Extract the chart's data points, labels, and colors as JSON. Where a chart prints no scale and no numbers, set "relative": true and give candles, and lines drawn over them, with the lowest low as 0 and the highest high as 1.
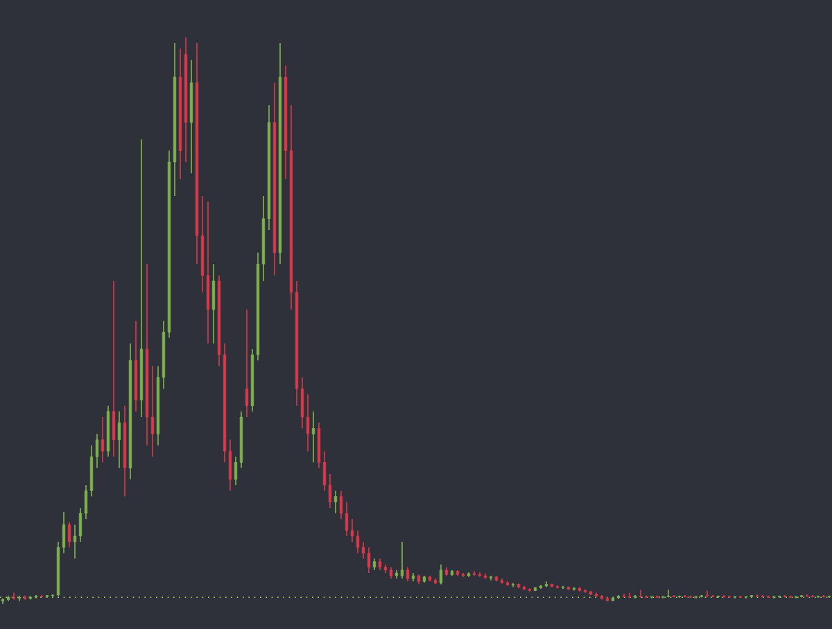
{
  "chart_data": {
    "type": "candlestick",
    "relative": true,
    "categories": [
      null,
      null,
      null,
      null,
      null,
      null,
      null,
      null,
      null,
      null,
      null,
      null,
      null,
      null,
      null,
      null,
      null,
      null,
      null,
      null,
      null,
      null,
      null,
      null,
      null,
      null,
      null,
      null,
      null,
      null,
      null,
      null,
      null,
      null,
      null,
      null,
      null,
      null,
      null,
      null,
      null,
      null,
      null,
      null,
      null,
      null,
      null,
      null,
      null,
      null,
      null,
      null,
      null,
      null,
      null,
      null,
      null,
      null,
      null,
      null,
      null,
      null,
      null,
      null,
      null,
      null,
      null,
      null,
      null,
      null,
      null,
      null,
      null,
      null,
      null,
      null,
      null,
      null,
      null,
      null,
      null,
      null,
      null,
      null,
      null,
      null,
      null,
      null,
      null,
      null,
      null,
      null,
      null,
      null,
      null,
      null,
      null,
      null,
      null,
      null,
      null,
      null,
      null,
      null,
      null,
      null,
      null,
      null,
      null,
      null,
      null,
      null,
      null,
      null,
      null,
      null,
      null,
      null,
      null,
      null,
      null,
      null,
      null,
      null,
      null,
      null,
      null,
      null,
      null,
      null,
      null,
      null,
      null,
      null,
      null,
      null,
      null,
      null,
      null,
      null,
      null,
      null,
      null,
      null,
      null,
      null,
      null,
      null,
      null,
      null
    ],
    "colors": [
      "#7fb24f",
      "#7fb24f",
      "#d9394a",
      "#7fb24f",
      "#d9394a",
      "#7fb24f",
      "#7fb24f",
      "#d9394a",
      "#7fb24f",
      "#7fb24f",
      "#7fb24f",
      "#7fb24f",
      "#d9394a",
      "#7fb24f",
      "#7fb24f",
      "#7fb24f",
      "#7fb24f",
      "#7fb24f",
      "#d9394a",
      "#7fb24f",
      "#d9394a",
      "#7fb24f",
      "#d9394a",
      "#7fb24f",
      "#d9394a",
      "#7fb24f",
      "#d9394a",
      "#d9394a",
      "#7fb24f",
      "#7fb24f",
      "#7fb24f",
      "#7fb24f",
      "#d9394a",
      "#d9394a",
      "#7fb24f",
      "#d9394a",
      "#d9394a",
      "#d9394a",
      "#7fb24f",
      "#d9394a",
      "#d9394a",
      "#d9394a",
      "#7fb24f",
      "#7fb24f",
      "#d9394a",
      "#7fb24f",
      "#7fb24f",
      "#7fb24f",
      "#7fb24f",
      "#d9394a",
      "#7fb24f",
      "#d9394a",
      "#d9394a",
      "#d9394a",
      "#d9394a",
      "#d9394a",
      "#7fb24f",
      "#d9394a",
      "#d9394a",
      "#d9394a",
      "#7fb24f",
      "#d9394a",
      "#d9394a",
      "#d9394a",
      "#d9394a",
      "#d9394a",
      "#d9394a",
      "#7fb24f",
      "#d9394a",
      "#d9394a",
      "#d9394a",
      "#7fb24f",
      "#7fb24f",
      "#d9394a",
      "#7fb24f",
      "#d9394a",
      "#7fb24f",
      "#d9394a",
      "#d9394a",
      "#7fb24f",
      "#d9394a",
      "#7fb24f",
      "#d9394a",
      "#d9394a",
      "#7fb24f",
      "#d9394a",
      "#d9394a",
      "#d9394a",
      "#7fb24f",
      "#d9394a",
      "#d9394a",
      "#d9394a",
      "#7fb24f",
      "#d9394a",
      "#d9394a",
      "#d9394a",
      "#7fb24f",
      "#7fb24f",
      "#7fb24f",
      "#d9394a",
      "#d9394a",
      "#7fb24f",
      "#d9394a",
      "#7fb24f",
      "#d9394a",
      "#d9394a",
      "#d9394a",
      "#d9394a",
      "#d9394a",
      "#d9394a",
      "#7fb24f",
      "#7fb24f",
      "#d9394a",
      "#d9394a",
      "#7fb24f",
      "#d9394a",
      "#d9394a",
      "#7fb24f",
      "#d9394a",
      "#7fb24f",
      "#7fb24f",
      "#d9394a",
      "#7fb24f",
      "#d9394a",
      "#d9394a",
      "#7fb24f",
      "#7fb24f",
      "#d9394a",
      "#d9394a",
      "#7fb24f",
      "#d9394a",
      "#d9394a",
      "#7fb24f",
      "#d9394a",
      "#7fb24f",
      "#7fb24f",
      "#d9394a",
      "#d9394a",
      "#d9394a",
      "#7fb24f",
      "#7fb24f",
      "#d9394a",
      "#d9394a",
      "#7fb24f",
      "#7fb24f",
      "#d9394a",
      "#d9394a",
      "#7fb24f",
      "#d9394a",
      "#7fb24f"
    ],
    "ref_lines": [
      {
        "axis": "y",
        "value": 0.012,
        "color": "#b5c97a",
        "line_style": "dotted"
      }
    ],
    "ohlc": [
      [
        0.005,
        0.01,
        0,
        0.008
      ],
      [
        0.008,
        0.015,
        0.005,
        0.012
      ],
      [
        0.012,
        0.02,
        0.008,
        0.01
      ],
      [
        0.01,
        0.015,
        0.005,
        0.012
      ],
      [
        0.012,
        0.015,
        0.008,
        0.01
      ],
      [
        0.01,
        0.014,
        0.008,
        0.012
      ],
      [
        0.012,
        0.016,
        0.01,
        0.014
      ],
      [
        0.014,
        0.016,
        0.012,
        0.013
      ],
      [
        0.013,
        0.016,
        0.011,
        0.015
      ],
      [
        0.015,
        0.017,
        0.012,
        0.016
      ],
      [
        0.016,
        0.11,
        0.014,
        0.1
      ],
      [
        0.1,
        0.163,
        0.09,
        0.14
      ],
      [
        0.14,
        0.145,
        0.1,
        0.11
      ],
      [
        0.11,
        0.14,
        0.08,
        0.12
      ],
      [
        0.12,
        0.17,
        0.11,
        0.16
      ],
      [
        0.16,
        0.21,
        0.15,
        0.2
      ],
      [
        0.2,
        0.28,
        0.19,
        0.26
      ],
      [
        0.26,
        0.3,
        0.24,
        0.29
      ],
      [
        0.29,
        0.33,
        0.25,
        0.27
      ],
      [
        0.27,
        0.35,
        0.26,
        0.34
      ],
      [
        0.34,
        0.57,
        0.26,
        0.29
      ],
      [
        0.29,
        0.34,
        0.24,
        0.32
      ],
      [
        0.32,
        0.35,
        0.19,
        0.24
      ],
      [
        0.24,
        0.46,
        0.22,
        0.43
      ],
      [
        0.43,
        0.5,
        0.34,
        0.36
      ],
      [
        0.36,
        0.82,
        0.33,
        0.45
      ],
      [
        0.45,
        0.6,
        0.28,
        0.33
      ],
      [
        0.33,
        0.42,
        0.26,
        0.3
      ],
      [
        0.3,
        0.42,
        0.28,
        0.4
      ],
      [
        0.4,
        0.5,
        0.38,
        0.48
      ],
      [
        0.48,
        0.8,
        0.47,
        0.78
      ],
      [
        0.78,
        0.99,
        0.72,
        0.93
      ],
      [
        0.93,
        0.98,
        0.75,
        0.8
      ],
      [
        0.97,
        1.0,
        0.78,
        0.85
      ],
      [
        0.85,
        0.96,
        0.76,
        0.92
      ],
      [
        0.92,
        0.99,
        0.6,
        0.65
      ],
      [
        0.65,
        0.72,
        0.55,
        0.58
      ],
      [
        0.58,
        0.71,
        0.46,
        0.52
      ],
      [
        0.52,
        0.6,
        0.46,
        0.57
      ],
      [
        0.57,
        0.58,
        0.42,
        0.44
      ],
      [
        0.44,
        0.46,
        0.25,
        0.27
      ],
      [
        0.27,
        0.29,
        0.2,
        0.22
      ],
      [
        0.22,
        0.26,
        0.21,
        0.25
      ],
      [
        0.25,
        0.34,
        0.24,
        0.33
      ],
      [
        0.38,
        0.52,
        0.33,
        0.35
      ],
      [
        0.35,
        0.45,
        0.34,
        0.44
      ],
      [
        0.44,
        0.62,
        0.43,
        0.6
      ],
      [
        0.6,
        0.72,
        0.57,
        0.68
      ],
      [
        0.68,
        0.88,
        0.66,
        0.85
      ],
      [
        0.85,
        0.92,
        0.58,
        0.62
      ],
      [
        0.62,
        0.99,
        0.6,
        0.93
      ],
      [
        0.93,
        0.95,
        0.75,
        0.8
      ],
      [
        0.8,
        0.88,
        0.52,
        0.55
      ],
      [
        0.55,
        0.57,
        0.35,
        0.38
      ],
      [
        0.38,
        0.4,
        0.31,
        0.33
      ],
      [
        0.33,
        0.37,
        0.27,
        0.3
      ],
      [
        0.3,
        0.34,
        0.25,
        0.31
      ],
      [
        0.31,
        0.32,
        0.24,
        0.25
      ],
      [
        0.25,
        0.27,
        0.2,
        0.21
      ],
      [
        0.21,
        0.23,
        0.17,
        0.18
      ],
      [
        0.18,
        0.2,
        0.16,
        0.19
      ],
      [
        0.19,
        0.2,
        0.15,
        0.16
      ],
      [
        0.16,
        0.18,
        0.12,
        0.13
      ],
      [
        0.13,
        0.15,
        0.11,
        0.12
      ],
      [
        0.12,
        0.13,
        0.09,
        0.1
      ],
      [
        0.1,
        0.11,
        0.08,
        0.09
      ],
      [
        0.09,
        0.1,
        0.055,
        0.065
      ],
      [
        0.065,
        0.08,
        0.06,
        0.075
      ],
      [
        0.075,
        0.08,
        0.06,
        0.065
      ],
      [
        0.065,
        0.07,
        0.055,
        0.06
      ],
      [
        0.06,
        0.065,
        0.045,
        0.05
      ],
      [
        0.05,
        0.06,
        0.045,
        0.055
      ],
      [
        0.05,
        0.11,
        0.045,
        0.06
      ],
      [
        0.06,
        0.065,
        0.04,
        0.045
      ],
      [
        0.045,
        0.055,
        0.04,
        0.05
      ],
      [
        0.05,
        0.052,
        0.035,
        0.04
      ],
      [
        0.04,
        0.05,
        0.038,
        0.048
      ],
      [
        0.048,
        0.05,
        0.04,
        0.042
      ],
      [
        0.042,
        0.045,
        0.035,
        0.037
      ],
      [
        0.037,
        0.07,
        0.035,
        0.06
      ],
      [
        0.06,
        0.065,
        0.05,
        0.052
      ],
      [
        0.052,
        0.06,
        0.05,
        0.058
      ],
      [
        0.058,
        0.06,
        0.05,
        0.052
      ],
      [
        0.052,
        0.055,
        0.048,
        0.05
      ],
      [
        0.05,
        0.056,
        0.048,
        0.054
      ],
      [
        0.054,
        0.058,
        0.05,
        0.052
      ],
      [
        0.052,
        0.056,
        0.048,
        0.05
      ],
      [
        0.05,
        0.054,
        0.045,
        0.046
      ],
      [
        0.046,
        0.05,
        0.042,
        0.048
      ],
      [
        0.048,
        0.05,
        0.04,
        0.042
      ],
      [
        0.042,
        0.045,
        0.036,
        0.038
      ],
      [
        0.038,
        0.04,
        0.032,
        0.034
      ],
      [
        0.034,
        0.037,
        0.03,
        0.035
      ],
      [
        0.035,
        0.036,
        0.028,
        0.03
      ],
      [
        0.03,
        0.032,
        0.025,
        0.026
      ],
      [
        0.026,
        0.028,
        0.022,
        0.024
      ],
      [
        0.024,
        0.03,
        0.023,
        0.029
      ],
      [
        0.029,
        0.034,
        0.027,
        0.032
      ],
      [
        0.032,
        0.04,
        0.03,
        0.035
      ],
      [
        0.035,
        0.036,
        0.03,
        0.031
      ],
      [
        0.031,
        0.033,
        0.028,
        0.029
      ],
      [
        0.029,
        0.032,
        0.027,
        0.03
      ],
      [
        0.03,
        0.031,
        0.025,
        0.026
      ],
      [
        0.026,
        0.03,
        0.024,
        0.028
      ],
      [
        0.028,
        0.03,
        0.022,
        0.024
      ],
      [
        0.024,
        0.026,
        0.02,
        0.022
      ],
      [
        0.022,
        0.023,
        0.016,
        0.017
      ],
      [
        0.017,
        0.02,
        0.012,
        0.014
      ],
      [
        0.014,
        0.016,
        0.008,
        0.01
      ],
      [
        0.01,
        0.012,
        0.005,
        0.006
      ],
      [
        0.006,
        0.012,
        0.005,
        0.011
      ],
      [
        0.011,
        0.016,
        0.009,
        0.014
      ],
      [
        0.014,
        0.018,
        0.012,
        0.013
      ],
      [
        0.013,
        0.02,
        0.011,
        0.012
      ],
      [
        0.012,
        0.016,
        0.01,
        0.014
      ],
      [
        0.014,
        0.025,
        0.012,
        0.013
      ],
      [
        0.013,
        0.015,
        0.011,
        0.012
      ],
      [
        0.012,
        0.014,
        0.01,
        0.013
      ],
      [
        0.013,
        0.015,
        0.011,
        0.012
      ],
      [
        0.012,
        0.014,
        0.01,
        0.013
      ],
      [
        0.013,
        0.025,
        0.012,
        0.014
      ],
      [
        0.014,
        0.016,
        0.012,
        0.013
      ],
      [
        0.013,
        0.015,
        0.011,
        0.014
      ],
      [
        0.014,
        0.016,
        0.012,
        0.013
      ],
      [
        0.013,
        0.015,
        0.011,
        0.012
      ],
      [
        0.012,
        0.014,
        0.01,
        0.013
      ],
      [
        0.013,
        0.016,
        0.012,
        0.015
      ],
      [
        0.015,
        0.024,
        0.013,
        0.014
      ],
      [
        0.014,
        0.016,
        0.012,
        0.013
      ],
      [
        0.013,
        0.015,
        0.011,
        0.014
      ],
      [
        0.014,
        0.016,
        0.012,
        0.013
      ],
      [
        0.013,
        0.015,
        0.011,
        0.012
      ],
      [
        0.012,
        0.014,
        0.01,
        0.013
      ],
      [
        0.013,
        0.015,
        0.011,
        0.012
      ],
      [
        0.012,
        0.014,
        0.01,
        0.013
      ],
      [
        0.013,
        0.016,
        0.012,
        0.015
      ],
      [
        0.015,
        0.017,
        0.013,
        0.014
      ],
      [
        0.014,
        0.016,
        0.012,
        0.013
      ],
      [
        0.013,
        0.015,
        0.011,
        0.012
      ],
      [
        0.012,
        0.014,
        0.01,
        0.013
      ],
      [
        0.013,
        0.015,
        0.011,
        0.014
      ],
      [
        0.014,
        0.016,
        0.012,
        0.013
      ],
      [
        0.013,
        0.015,
        0.011,
        0.012
      ],
      [
        0.012,
        0.014,
        0.01,
        0.013
      ],
      [
        0.013,
        0.016,
        0.012,
        0.015
      ],
      [
        0.015,
        0.017,
        0.013,
        0.014
      ],
      [
        0.014,
        0.016,
        0.012,
        0.013
      ],
      [
        0.013,
        0.015,
        0.011,
        0.014
      ],
      [
        0.014,
        0.016,
        0.012,
        0.013
      ],
      [
        0.013,
        0.015,
        0.011,
        0.014
      ]
    ]
  }
}
